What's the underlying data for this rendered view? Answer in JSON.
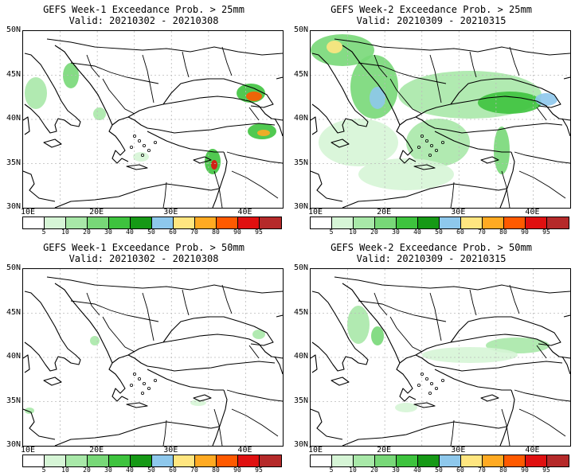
{
  "panels": [
    {
      "title": "GEFS Week-1 Exceedance Prob. > 25mm",
      "valid": "Valid: 20210302 - 20210308"
    },
    {
      "title": "GEFS Week-2 Exceedance Prob. > 25mm",
      "valid": "Valid: 20210309 - 20210315"
    },
    {
      "title": "GEFS Week-1 Exceedance Prob. > 50mm",
      "valid": "Valid: 20210302 - 20210308"
    },
    {
      "title": "GEFS Week-2 Exceedance Prob. > 50mm",
      "valid": "Valid: 20210309 - 20210315"
    }
  ],
  "axes": {
    "lat_labels": [
      "50N",
      "45N",
      "40N",
      "35N",
      "30N"
    ],
    "lon_labels": [
      "10E",
      "20E",
      "30E",
      "40E"
    ]
  },
  "colorbar": {
    "labels": [
      "5",
      "10",
      "20",
      "30",
      "40",
      "50",
      "60",
      "70",
      "80",
      "90",
      "95"
    ],
    "colors": [
      "#ffffff",
      "#d6f5d6",
      "#a8e8a8",
      "#78d878",
      "#3ec33e",
      "#169916",
      "#8ec8ec",
      "#ffe680",
      "#ffaa22",
      "#ff5a00",
      "#e01010",
      "#b52a2a"
    ]
  },
  "map": {
    "lon_range": [
      10,
      45
    ],
    "lat_range": [
      30,
      50
    ],
    "grid_color": "#bbbbbb"
  }
}
